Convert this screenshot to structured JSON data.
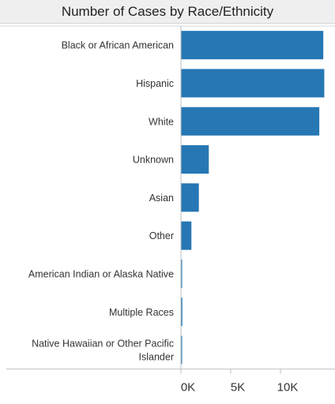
{
  "chart_data": {
    "type": "bar",
    "orientation": "horizontal",
    "title": "Number of Cases by Race/Ethnicity",
    "categories": [
      [
        "Black or African American"
      ],
      [
        "Hispanic"
      ],
      [
        "White"
      ],
      [
        "Unknown"
      ],
      [
        "Asian"
      ],
      [
        "Other"
      ],
      [
        "American Indian or Alaska Native"
      ],
      [
        "Multiple Races"
      ],
      [
        "Native Hawaiian or Other Pacific",
        "Islander"
      ]
    ],
    "values": [
      14300,
      14400,
      13900,
      2800,
      1800,
      1050,
      120,
      140,
      110
    ],
    "xlim": [
      0,
      15000
    ],
    "xticks": [
      {
        "value": 0,
        "label": "0K"
      },
      {
        "value": 5000,
        "label": "5K"
      },
      {
        "value": 10000,
        "label": "10K"
      }
    ],
    "xlabel": "",
    "ylabel": "",
    "grid": false,
    "bar_color": "#2677b4"
  }
}
